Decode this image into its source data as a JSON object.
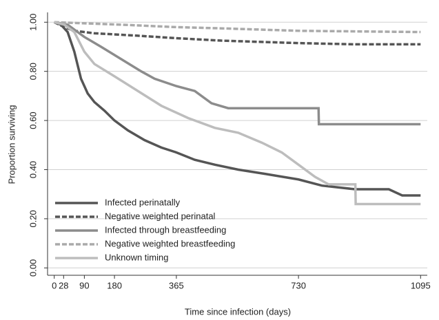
{
  "chart_data": {
    "type": "line",
    "xlabel": "Time since infection (days)",
    "ylabel": "Proportion surviving",
    "xlim": [
      -20,
      1115
    ],
    "ylim": [
      -0.03,
      1.04
    ],
    "xticks": [
      0,
      28,
      90,
      180,
      365,
      730,
      1095
    ],
    "yticks": [
      {
        "value": 0,
        "label": "0.00"
      },
      {
        "value": 0.2,
        "label": "0.20"
      },
      {
        "value": 0.4,
        "label": "0.40"
      },
      {
        "value": 0.6,
        "label": "0.60"
      },
      {
        "value": 0.8,
        "label": "0.80"
      },
      {
        "value": 1,
        "label": "1.00"
      }
    ],
    "grid": true,
    "legend": "lower left",
    "series": [
      {
        "name": "Infected perinatally",
        "color": "#555555",
        "dash": false,
        "x": [
          0,
          20,
          40,
          60,
          80,
          100,
          120,
          150,
          180,
          220,
          270,
          320,
          365,
          420,
          480,
          550,
          620,
          730,
          800,
          900,
          1000,
          1040,
          1095
        ],
        "values": [
          1.0,
          0.99,
          0.96,
          0.88,
          0.77,
          0.71,
          0.675,
          0.64,
          0.6,
          0.56,
          0.52,
          0.49,
          0.47,
          0.44,
          0.42,
          0.4,
          0.385,
          0.36,
          0.335,
          0.32,
          0.32,
          0.295,
          0.295
        ]
      },
      {
        "name": "Negative weighted perinatal",
        "color": "#555555",
        "dash": true,
        "x": [
          0,
          30,
          60,
          120,
          250,
          365,
          500,
          730,
          900,
          1095
        ],
        "values": [
          1.0,
          0.98,
          0.965,
          0.955,
          0.945,
          0.935,
          0.925,
          0.915,
          0.91,
          0.91
        ]
      },
      {
        "name": "Infected through breastfeeding",
        "color": "#8c8c8c",
        "dash": false,
        "x": [
          0,
          40,
          90,
          140,
          200,
          260,
          300,
          365,
          420,
          470,
          520,
          600,
          790,
          791,
          1095
        ],
        "values": [
          1.0,
          0.99,
          0.94,
          0.9,
          0.85,
          0.8,
          0.77,
          0.74,
          0.72,
          0.67,
          0.65,
          0.65,
          0.65,
          0.585,
          0.585
        ]
      },
      {
        "name": "Negative weighted breastfeeding",
        "color": "#aaaaaa",
        "dash": true,
        "x": [
          0,
          100,
          200,
          365,
          500,
          730,
          1095
        ],
        "values": [
          1.0,
          0.995,
          0.99,
          0.98,
          0.975,
          0.965,
          0.96
        ]
      },
      {
        "name": "Unknown timing",
        "color": "#bdbdbd",
        "dash": false,
        "x": [
          0,
          30,
          60,
          90,
          120,
          180,
          250,
          320,
          400,
          480,
          550,
          620,
          680,
          730,
          780,
          820,
          900,
          901,
          1095
        ],
        "values": [
          1.0,
          0.99,
          0.96,
          0.88,
          0.83,
          0.78,
          0.72,
          0.66,
          0.61,
          0.57,
          0.55,
          0.51,
          0.47,
          0.42,
          0.37,
          0.34,
          0.34,
          0.26,
          0.26
        ]
      }
    ]
  }
}
